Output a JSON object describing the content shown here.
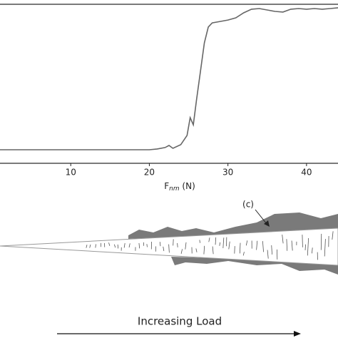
{
  "chart_data": {
    "type": "line",
    "x": [
      0,
      10,
      20,
      21,
      22,
      22.5,
      23,
      24,
      24.8,
      25.2,
      25.6,
      26,
      26.5,
      27,
      27.5,
      28,
      29,
      30,
      31,
      32,
      33,
      34,
      35,
      36,
      37,
      38,
      39,
      40,
      41,
      42,
      43,
      44,
      44.5
    ],
    "series": [
      {
        "color": "#666666",
        "values": [
          0.085,
          0.085,
          0.085,
          0.09,
          0.099,
          0.112,
          0.094,
          0.117,
          0.175,
          0.287,
          0.242,
          0.399,
          0.578,
          0.758,
          0.857,
          0.883,
          0.892,
          0.901,
          0.915,
          0.946,
          0.969,
          0.973,
          0.964,
          0.955,
          0.951,
          0.969,
          0.973,
          0.969,
          0.973,
          0.969,
          0.973,
          0.978,
          0.973
        ]
      }
    ],
    "xlim": [
      0,
      44.5
    ],
    "xticks": [
      10,
      20,
      30,
      40
    ],
    "ylim": [
      0,
      1
    ],
    "x_label_parts": [
      "F",
      "nm",
      " (N)"
    ]
  },
  "diagram": {
    "callout": "(c)",
    "arrow_label": "Increasing Load"
  }
}
